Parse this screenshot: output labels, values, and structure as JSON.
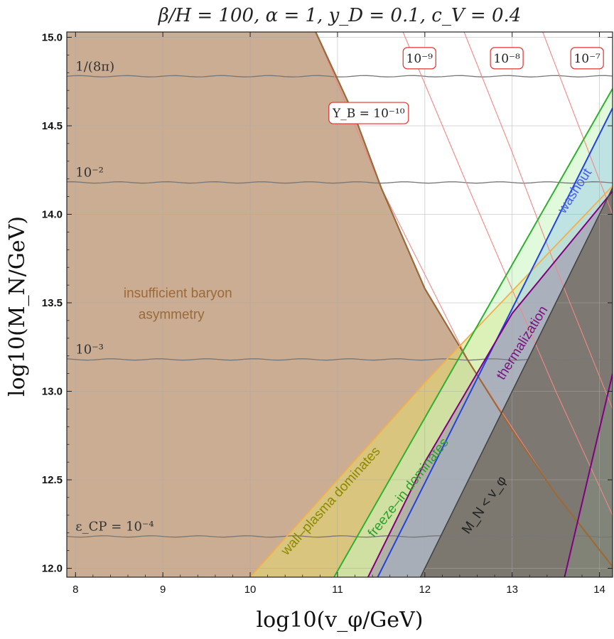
{
  "title": "β/H = 100, α = 1, y_D = 0.1, c_V = 0.4",
  "chart_data": {
    "type": "area",
    "title": "β/H = 100, α = 1, y_D = 0.1, c_V = 0.4",
    "xlabel": "log10(v_φ/GeV)",
    "ylabel": "log10(M_N/GeV)",
    "xlim": [
      7.9,
      14.15
    ],
    "ylim": [
      11.95,
      15.03
    ],
    "x_ticks": [
      "8",
      "9",
      "10",
      "11",
      "12",
      "13",
      "14"
    ],
    "y_ticks": [
      "12.0",
      "12.5",
      "13.0",
      "13.5",
      "14.0",
      "14.5",
      "15.0"
    ],
    "grid": true,
    "eps_cp_lines": [
      {
        "label": "1/(8π)",
        "y": 14.78
      },
      {
        "label": "10⁻²",
        "y": 14.18
      },
      {
        "label": "10⁻³",
        "y": 13.18
      },
      {
        "label": "ε_CP = 10⁻⁴",
        "y": 12.18
      }
    ],
    "yb_contours": [
      {
        "label": "Y_B = 10⁻¹⁰",
        "x": [
          10.75,
          11.5,
          12.5,
          13.5,
          14.15
        ],
        "y": [
          15.03,
          14.15,
          13.17,
          12.42,
          12.01
        ]
      },
      {
        "label": "10⁻⁹",
        "x": [
          11.75,
          12.5,
          13.5,
          14.15
        ],
        "y": [
          15.03,
          14.15,
          13.0,
          12.3
        ]
      },
      {
        "label": "10⁻⁸",
        "x": [
          12.45,
          13.0,
          13.5,
          14.15
        ],
        "y": [
          15.03,
          14.35,
          13.7,
          12.9
        ]
      },
      {
        "label": "10⁻⁷",
        "x": [
          13.35,
          13.8,
          14.15
        ],
        "y": [
          15.03,
          14.45,
          14.0
        ]
      }
    ],
    "boundaries": {
      "insufficient_baryon": {
        "x": [
          10.75,
          11.2,
          11.5,
          12.0,
          12.5,
          13.0,
          13.5,
          14.15
        ],
        "y": [
          15.03,
          14.55,
          14.15,
          13.58,
          13.17,
          12.78,
          12.42,
          12.01
        ]
      },
      "wall_plasma_top": {
        "x": [
          10.0,
          12.0,
          14.15
        ],
        "y": [
          11.95,
          13.05,
          14.16
        ]
      },
      "freeze_in_left": {
        "x": [
          10.96,
          14.15
        ],
        "y": [
          11.95,
          14.71
        ]
      },
      "washout_left": {
        "x": [
          11.46,
          14.15
        ],
        "y": [
          11.95,
          14.6
        ]
      },
      "thermalization_top": {
        "x": [
          11.35,
          12.0,
          13.0,
          14.15
        ],
        "y": [
          11.95,
          12.6,
          13.44,
          14.13
        ]
      },
      "thermalization_bottom": {
        "x": [
          13.6,
          14.15
        ],
        "y": [
          11.95,
          13.1
        ]
      },
      "mn_lt_vphi": {
        "x": [
          11.95,
          14.15
        ],
        "y": [
          11.95,
          14.15
        ]
      }
    },
    "region_labels": [
      {
        "text": "insufficient baryon",
        "color": "#9b6a3a"
      },
      {
        "text": "asymmetry",
        "color": "#9b6a3a"
      },
      {
        "text": "wall–plasma dominates",
        "color": "#8a8a00"
      },
      {
        "text": "freeze–in dominates",
        "color": "#2e9e2e"
      },
      {
        "text": "washout",
        "color": "#4a5ee8"
      },
      {
        "text": "thermalization",
        "color": "#7a1480"
      },
      {
        "text": "M_N < v_φ",
        "color": "#222222"
      }
    ],
    "colors": {
      "insufficient": "#c7a98d",
      "insufficient_edge": "#9b6a3a",
      "wall_plasma": "#e8d870",
      "wall_plasma_edge": "#f0b050",
      "freeze_in": "#c8f5c0",
      "freeze_in_edge": "#30b030",
      "washout": "#a9d4e8",
      "washout_edge": "#2244dd",
      "thermalization": "#9a8aa8",
      "thermalization_edge": "#800080",
      "mn_lt_vphi": "#6e6558",
      "yb_lines": "#f08888",
      "eps_lines": "#777777"
    }
  }
}
